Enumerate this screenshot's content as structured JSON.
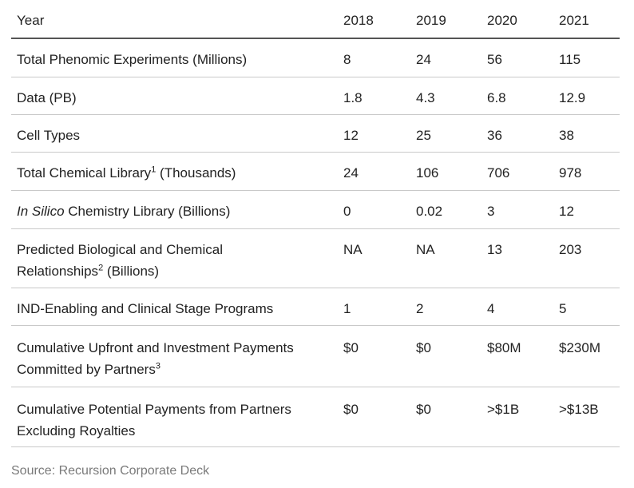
{
  "header": {
    "label": "Year",
    "years": [
      "2018",
      "2019",
      "2020",
      "2021"
    ]
  },
  "rows": [
    {
      "label": "Total Phenomic Experiments (Millions)",
      "values": [
        "8",
        "24",
        "56",
        "115"
      ]
    },
    {
      "label": "Data (PB)",
      "values": [
        "1.8",
        "4.3",
        "6.8",
        "12.9"
      ]
    },
    {
      "label": "Cell Types",
      "values": [
        "12",
        "25",
        "36",
        "38"
      ]
    },
    {
      "label_main": "Total Chemical Library",
      "label_sup": "1",
      "label_tail": " (Thousands)",
      "values": [
        "24",
        "106",
        "706",
        "978"
      ]
    },
    {
      "label_italic": "In Silico",
      "label_tail": " Chemistry Library (Billions)",
      "values": [
        "0",
        "0.02",
        "3",
        "12"
      ]
    },
    {
      "label_line1": "Predicted Biological and Chemical",
      "label_line2_main": "Relationships",
      "label_line2_sup": "2",
      "label_line2_tail": " (Billions)",
      "values": [
        "NA",
        "NA",
        "13",
        "203"
      ]
    },
    {
      "label": "IND-Enabling and Clinical Stage Programs",
      "values": [
        "1",
        "2",
        "4",
        "5"
      ]
    },
    {
      "label_line1": "Cumulative Upfront and Investment Payments",
      "label_line2_main": "Committed by Partners",
      "label_line2_sup": "3",
      "values": [
        "$0",
        "$0",
        "$80M",
        "$230M"
      ]
    },
    {
      "label_line1": "Cumulative Potential Payments from Partners",
      "label_line2_main": "Excluding Royalties",
      "values": [
        "$0",
        "$0",
        ">$1B",
        ">$13B"
      ]
    }
  ],
  "source": "Source: Recursion Corporate Deck"
}
